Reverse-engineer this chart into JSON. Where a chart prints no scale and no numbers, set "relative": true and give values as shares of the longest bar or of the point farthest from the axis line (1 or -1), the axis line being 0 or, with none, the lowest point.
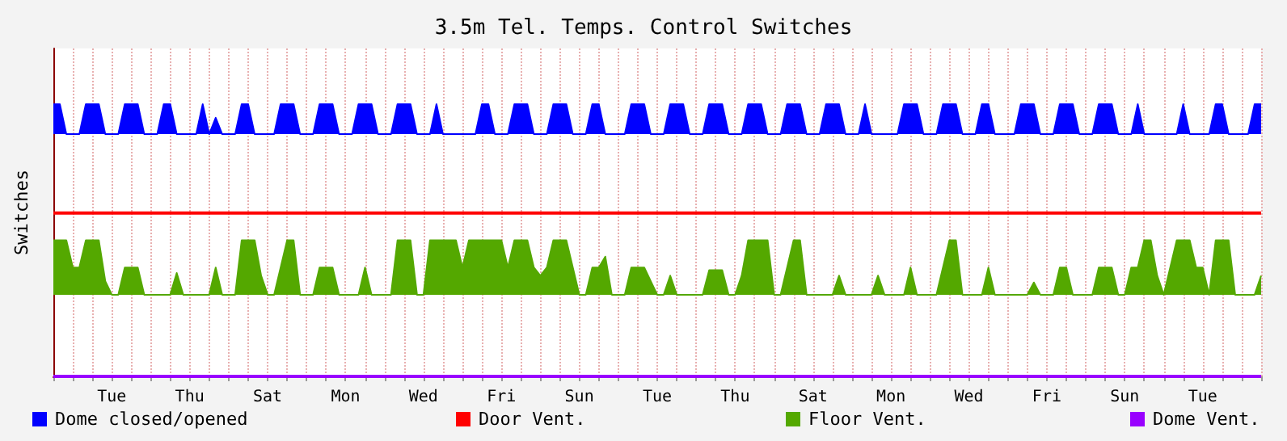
{
  "chart_data": {
    "type": "area",
    "title": "3.5m Tel. Temps. Control Switches",
    "ylabel": "Switches",
    "relative": true,
    "grid": "x",
    "legend": "bottom",
    "categories": [
      null,
      null,
      null,
      null,
      null,
      null,
      null,
      null,
      null,
      "Tue",
      null,
      null,
      null,
      null,
      null,
      null,
      null,
      null,
      null,
      null,
      null,
      "Thu",
      null,
      null,
      null,
      null,
      null,
      null,
      null,
      null,
      null,
      null,
      null,
      "Sat",
      null,
      null,
      null,
      null,
      null,
      null,
      null,
      null,
      null,
      null,
      null,
      "Mon",
      null,
      null,
      null,
      null,
      null,
      null,
      null,
      null,
      null,
      null,
      null,
      "Wed",
      null,
      null,
      null,
      null,
      null,
      null,
      null,
      null,
      null,
      null,
      null,
      "Fri",
      null,
      null,
      null,
      null,
      null,
      null,
      null,
      null,
      null,
      null,
      null,
      "Sun",
      null,
      null,
      null,
      null,
      null,
      null,
      null,
      null,
      null,
      null,
      null,
      "Tue",
      null,
      null,
      null,
      null,
      null,
      null,
      null,
      null,
      null,
      null,
      null,
      "Thu",
      null,
      null,
      null,
      null,
      null,
      null,
      null,
      null,
      null,
      null,
      null,
      "Sat",
      null,
      null,
      null,
      null,
      null,
      null,
      null,
      null,
      null,
      null,
      null,
      "Mon",
      null,
      null,
      null,
      null,
      null,
      null,
      null,
      null,
      null,
      null,
      null,
      "Wed",
      null,
      null,
      null,
      null,
      null,
      null,
      null,
      null,
      null,
      null,
      null,
      "Fri",
      null,
      null,
      null,
      null,
      null,
      null,
      null,
      null,
      null,
      null,
      null,
      "Sun",
      null,
      null,
      null,
      null,
      null,
      null,
      null,
      null,
      null,
      null,
      null,
      "Tue",
      null,
      null,
      null,
      null,
      null,
      null,
      null,
      null,
      null
    ],
    "series": [
      {
        "name": "Dome closed/opened",
        "color": "#0000ff",
        "values": [
          1,
          1,
          0.89,
          0.89,
          0.89,
          1,
          1,
          1,
          0.89,
          0.89,
          0.89,
          1,
          1,
          1,
          0.89,
          0.89,
          0.89,
          1,
          1,
          0.89,
          0.89,
          0.89,
          0.89,
          1,
          0.89,
          0.95,
          0.89,
          0.89,
          0.89,
          1,
          1,
          0.89,
          0.89,
          0.89,
          0.89,
          1,
          1,
          1,
          0.89,
          0.89,
          0.89,
          1,
          1,
          1,
          0.89,
          0.89,
          0.89,
          1,
          1,
          1,
          0.89,
          0.89,
          0.89,
          1,
          1,
          1,
          0.89,
          0.89,
          0.89,
          1,
          0.89,
          0.89,
          0.89,
          0.89,
          0.89,
          0.89,
          1,
          1,
          0.89,
          0.89,
          0.89,
          1,
          1,
          1,
          0.89,
          0.89,
          0.89,
          1,
          1,
          1,
          0.89,
          0.89,
          0.89,
          1,
          1,
          0.89,
          0.89,
          0.89,
          0.89,
          1,
          1,
          1,
          0.89,
          0.89,
          0.89,
          1,
          1,
          1,
          0.89,
          0.89,
          0.89,
          1,
          1,
          1,
          0.89,
          0.89,
          0.89,
          1,
          1,
          1,
          0.89,
          0.89,
          0.89,
          1,
          1,
          1,
          0.89,
          0.89,
          0.89,
          1,
          1,
          1,
          0.89,
          0.89,
          0.89,
          1,
          0.89,
          0.89,
          0.89,
          0.89,
          0.89,
          1,
          1,
          1,
          0.89,
          0.89,
          0.89,
          1,
          1,
          1,
          0.89,
          0.89,
          0.89,
          1,
          1,
          0.89,
          0.89,
          0.89,
          0.89,
          1,
          1,
          1,
          0.89,
          0.89,
          0.89,
          1,
          1,
          1,
          0.89,
          0.89,
          0.89,
          1,
          1,
          1,
          0.89,
          0.89,
          0.89,
          1,
          0.89,
          0.89,
          0.89,
          0.89,
          0.89,
          0.89,
          1,
          0.89,
          0.89,
          0.89,
          0.89,
          1,
          1,
          0.89,
          0.89,
          0.89,
          0.89,
          1,
          1
        ]
      },
      {
        "name": "Door Vent.",
        "color": "#ff0000",
        "type": "line",
        "values": [
          0.6,
          0.6,
          0.6,
          0.6,
          0.6,
          0.6,
          0.6,
          0.6,
          0.6,
          0.6,
          0.6,
          0.6,
          0.6,
          0.6,
          0.6,
          0.6,
          0.6,
          0.6,
          0.6,
          0.6,
          0.6,
          0.6,
          0.6,
          0.6,
          0.6,
          0.6,
          0.6,
          0.6,
          0.6,
          0.6,
          0.6,
          0.6,
          0.6,
          0.6,
          0.6,
          0.6,
          0.6,
          0.6,
          0.6,
          0.6,
          0.6,
          0.6,
          0.6,
          0.6,
          0.6,
          0.6,
          0.6,
          0.6,
          0.6,
          0.6,
          0.6,
          0.6,
          0.6,
          0.6,
          0.6,
          0.6,
          0.6,
          0.6,
          0.6,
          0.6,
          0.6,
          0.6,
          0.6,
          0.6,
          0.6,
          0.6,
          0.6,
          0.6,
          0.6,
          0.6,
          0.6,
          0.6,
          0.6,
          0.6,
          0.6,
          0.6,
          0.6,
          0.6,
          0.6,
          0.6,
          0.6,
          0.6,
          0.6,
          0.6,
          0.6,
          0.6,
          0.6,
          0.6,
          0.6,
          0.6,
          0.6,
          0.6,
          0.6,
          0.6,
          0.6,
          0.6,
          0.6,
          0.6,
          0.6,
          0.6,
          0.6,
          0.6,
          0.6,
          0.6,
          0.6,
          0.6,
          0.6,
          0.6,
          0.6,
          0.6,
          0.6,
          0.6,
          0.6,
          0.6,
          0.6,
          0.6,
          0.6,
          0.6,
          0.6,
          0.6,
          0.6,
          0.6,
          0.6,
          0.6,
          0.6,
          0.6,
          0.6,
          0.6,
          0.6,
          0.6,
          0.6,
          0.6,
          0.6,
          0.6,
          0.6,
          0.6,
          0.6,
          0.6,
          0.6,
          0.6,
          0.6,
          0.6,
          0.6,
          0.6,
          0.6,
          0.6,
          0.6,
          0.6,
          0.6,
          0.6,
          0.6,
          0.6,
          0.6,
          0.6,
          0.6,
          0.6,
          0.6,
          0.6,
          0.6,
          0.6,
          0.6,
          0.6,
          0.6,
          0.6,
          0.6,
          0.6,
          0.6,
          0.6,
          0.6,
          0.6,
          0.6,
          0.6,
          0.6,
          0.6,
          0.6,
          0.6,
          0.6,
          0.6,
          0.6,
          0.6,
          0.6,
          0.6,
          0.6,
          0.6,
          0.6,
          0.6,
          0.6
        ]
      },
      {
        "name": "Floor Vent.",
        "color": "#54a800",
        "values": [
          0.5,
          0.5,
          0.5,
          0.4,
          0.4,
          0.5,
          0.5,
          0.5,
          0.35,
          0.3,
          0.3,
          0.4,
          0.4,
          0.4,
          0.3,
          0.3,
          0.3,
          0.3,
          0.3,
          0.38,
          0.3,
          0.3,
          0.3,
          0.3,
          0.3,
          0.4,
          0.3,
          0.3,
          0.3,
          0.5,
          0.5,
          0.5,
          0.37,
          0.3,
          0.3,
          0.4,
          0.5,
          0.5,
          0.3,
          0.3,
          0.3,
          0.4,
          0.4,
          0.4,
          0.3,
          0.3,
          0.3,
          0.3,
          0.4,
          0.3,
          0.3,
          0.3,
          0.3,
          0.5,
          0.5,
          0.5,
          0.3,
          0.3,
          0.5,
          0.5,
          0.5,
          0.5,
          0.5,
          0.4,
          0.5,
          0.5,
          0.5,
          0.5,
          0.5,
          0.5,
          0.4,
          0.5,
          0.5,
          0.5,
          0.4,
          0.37,
          0.4,
          0.5,
          0.5,
          0.5,
          0.4,
          0.3,
          0.3,
          0.4,
          0.4,
          0.44,
          0.3,
          0.3,
          0.3,
          0.4,
          0.4,
          0.4,
          0.35,
          0.3,
          0.3,
          0.37,
          0.3,
          0.3,
          0.3,
          0.3,
          0.3,
          0.39,
          0.39,
          0.39,
          0.3,
          0.3,
          0.37,
          0.5,
          0.5,
          0.5,
          0.5,
          0.3,
          0.3,
          0.4,
          0.5,
          0.5,
          0.3,
          0.3,
          0.3,
          0.3,
          0.3,
          0.37,
          0.3,
          0.3,
          0.3,
          0.3,
          0.3,
          0.37,
          0.3,
          0.3,
          0.3,
          0.3,
          0.4,
          0.3,
          0.3,
          0.3,
          0.3,
          0.4,
          0.5,
          0.5,
          0.3,
          0.3,
          0.3,
          0.3,
          0.4,
          0.3,
          0.3,
          0.3,
          0.3,
          0.3,
          0.3,
          0.345,
          0.3,
          0.3,
          0.3,
          0.4,
          0.4,
          0.3,
          0.3,
          0.3,
          0.3,
          0.4,
          0.4,
          0.4,
          0.3,
          0.3,
          0.4,
          0.4,
          0.5,
          0.5,
          0.37,
          0.3,
          0.4,
          0.5,
          0.5,
          0.5,
          0.4,
          0.4,
          0.3,
          0.5,
          0.5,
          0.5,
          0.3,
          0.3,
          0.3,
          0.3,
          0.37
        ]
      },
      {
        "name": "Dome Vent.",
        "color": "#9900ff",
        "type": "line",
        "values": [
          0,
          0,
          0,
          0,
          0,
          0,
          0,
          0,
          0,
          0,
          0,
          0,
          0,
          0,
          0,
          0,
          0,
          0,
          0,
          0,
          0,
          0,
          0,
          0,
          0,
          0,
          0,
          0,
          0,
          0,
          0,
          0,
          0,
          0,
          0,
          0,
          0,
          0,
          0,
          0,
          0,
          0,
          0,
          0,
          0,
          0,
          0,
          0,
          0,
          0,
          0,
          0,
          0,
          0,
          0,
          0,
          0,
          0,
          0,
          0,
          0,
          0,
          0,
          0,
          0,
          0,
          0,
          0,
          0,
          0,
          0,
          0,
          0,
          0,
          0,
          0,
          0,
          0,
          0,
          0,
          0,
          0,
          0,
          0,
          0,
          0,
          0,
          0,
          0,
          0,
          0,
          0,
          0,
          0,
          0,
          0,
          0,
          0,
          0,
          0,
          0,
          0,
          0,
          0,
          0,
          0,
          0,
          0,
          0,
          0,
          0,
          0,
          0,
          0,
          0,
          0,
          0,
          0,
          0,
          0,
          0,
          0,
          0,
          0,
          0,
          0,
          0,
          0,
          0,
          0,
          0,
          0,
          0,
          0,
          0,
          0,
          0,
          0,
          0,
          0,
          0,
          0,
          0,
          0,
          0,
          0,
          0,
          0,
          0,
          0,
          0,
          0,
          0,
          0,
          0,
          0,
          0,
          0,
          0,
          0,
          0,
          0,
          0,
          0,
          0,
          0,
          0,
          0,
          0,
          0,
          0,
          0,
          0,
          0,
          0,
          0,
          0,
          0,
          0,
          0,
          0,
          0,
          0,
          0,
          0,
          0,
          0
        ]
      }
    ]
  }
}
